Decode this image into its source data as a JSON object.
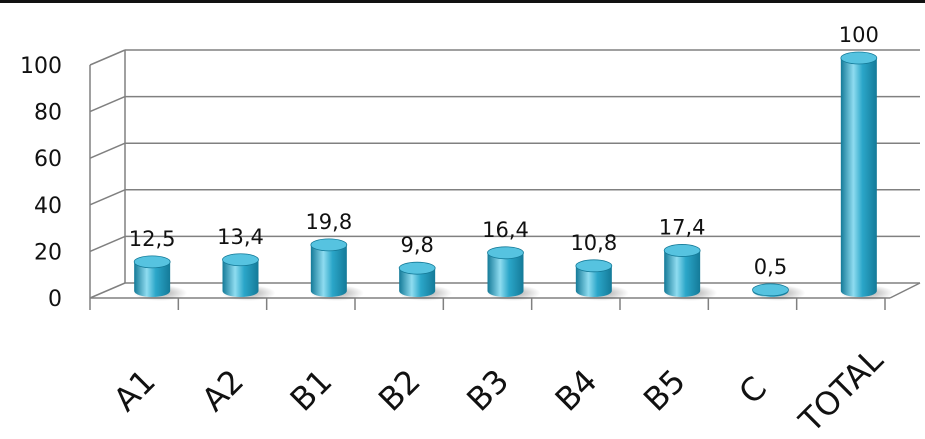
{
  "chart_data": {
    "type": "bar",
    "categories": [
      "A1",
      "A2",
      "B1",
      "B2",
      "B3",
      "B4",
      "B5",
      "C",
      "TOTAL"
    ],
    "values": [
      12.5,
      13.4,
      19.8,
      9.8,
      16.4,
      10.8,
      17.4,
      0.5,
      100
    ],
    "value_labels": [
      "12,5",
      "13,4",
      "19,8",
      "9,8",
      "16,4",
      "10,8",
      "17,4",
      "0,5",
      "100"
    ],
    "y_ticks": [
      0,
      20,
      40,
      60,
      80,
      100
    ],
    "ylim": [
      0,
      100
    ],
    "grid": true,
    "bar_style": "3d-cylinder",
    "colors": {
      "bar": "#2ba6c9",
      "bar_dark": "#147a98",
      "bar_light": "#8fdcf0",
      "bar_top": "#56c3e0",
      "grid": "#808080",
      "text": "#111111"
    }
  }
}
